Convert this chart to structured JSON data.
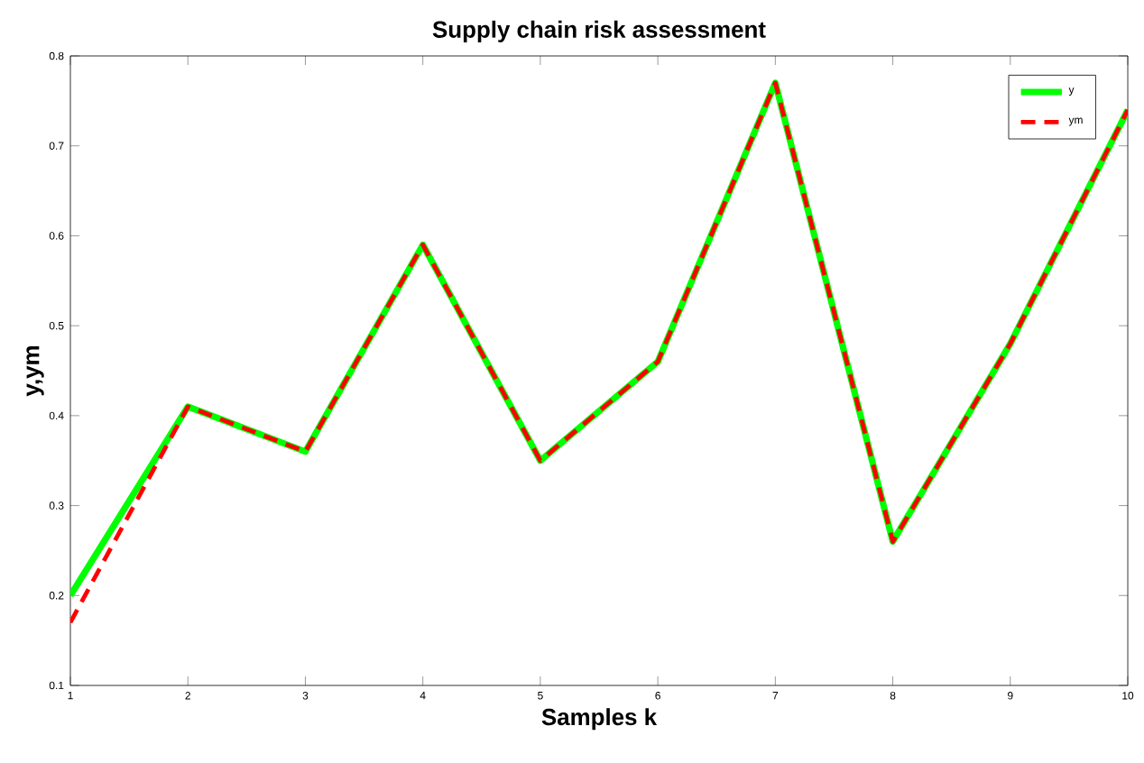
{
  "chart_data": {
    "type": "line",
    "title": "Supply chain risk assessment",
    "xlabel": "Samples k",
    "ylabel": "y,ym",
    "x": [
      1,
      2,
      3,
      4,
      5,
      6,
      7,
      8,
      9,
      10
    ],
    "series": [
      {
        "name": "y",
        "color": "#00ff00",
        "line_style": "solid",
        "values": [
          0.2,
          0.41,
          0.36,
          0.59,
          0.35,
          0.46,
          0.77,
          0.26,
          0.48,
          0.74
        ]
      },
      {
        "name": "ym",
        "color": "#ff0000",
        "line_style": "dashed",
        "values": [
          0.17,
          0.41,
          0.36,
          0.59,
          0.35,
          0.46,
          0.77,
          0.26,
          0.48,
          0.74
        ]
      }
    ],
    "xlim": [
      1,
      10
    ],
    "xticks": [
      1,
      2,
      3,
      4,
      5,
      6,
      7,
      8,
      9,
      10
    ],
    "ylim": [
      0.1,
      0.8
    ],
    "yticks": [
      0.1,
      0.2,
      0.3,
      0.4,
      0.5,
      0.6,
      0.7,
      0.8
    ],
    "grid": false,
    "legend": "top right",
    "marker": "none"
  }
}
